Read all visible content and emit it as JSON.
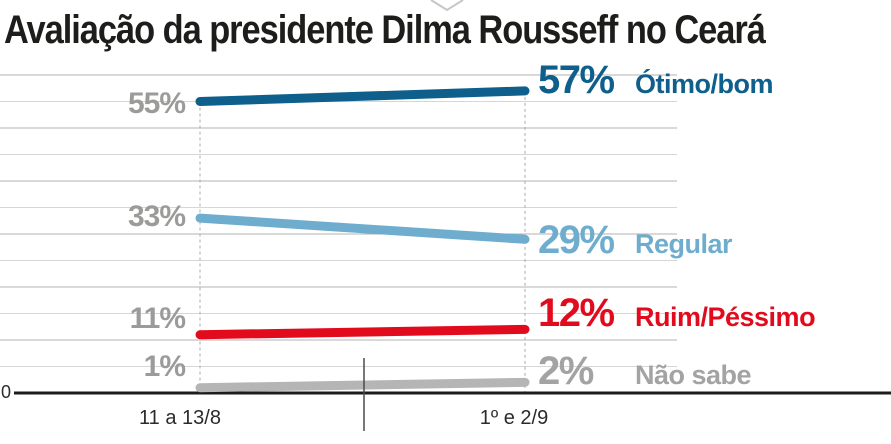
{
  "title": "Avaliação da presidente Dilma Rousseff no Ceará",
  "icons": {
    "top_chevron": "chevron-down"
  },
  "colors": {
    "title_text": "#1d1d1b",
    "start_labels_gray": "#9b9b9a",
    "grid_major": "#b3b3b3",
    "grid_minor": "#d6d6d6",
    "dashed_guide": "#ababab",
    "axis": "#1c1c1c",
    "divider_tick": "#4a4a4a"
  },
  "chart_data": {
    "type": "line",
    "title": "Avaliação da presidente Dilma Rousseff no Ceará",
    "x_categories": [
      "11 a 13/8",
      "1º e 2/9"
    ],
    "series": [
      {
        "name": "Ótimo/bom",
        "values": [
          55,
          57
        ],
        "color": "#0e5f8c",
        "start_label": "55%",
        "end_label": "57%"
      },
      {
        "name": "Regular",
        "values": [
          33,
          29
        ],
        "color": "#6fadce",
        "start_label": "33%",
        "end_label": "29%"
      },
      {
        "name": "Ruim/Péssimo",
        "values": [
          11,
          12
        ],
        "color": "#e20b1e",
        "start_label": "11%",
        "end_label": "12%"
      },
      {
        "name": "Não sabe",
        "values": [
          1,
          2
        ],
        "color": "#b5b5b5",
        "label_color": "#a3a3a3",
        "start_label": "1%",
        "end_label": "2%"
      }
    ],
    "ylim": [
      0,
      60
    ],
    "grid_step": 5,
    "grid": true,
    "unit": "%",
    "baseline_label": "0",
    "legend_position": "right of line ends"
  }
}
